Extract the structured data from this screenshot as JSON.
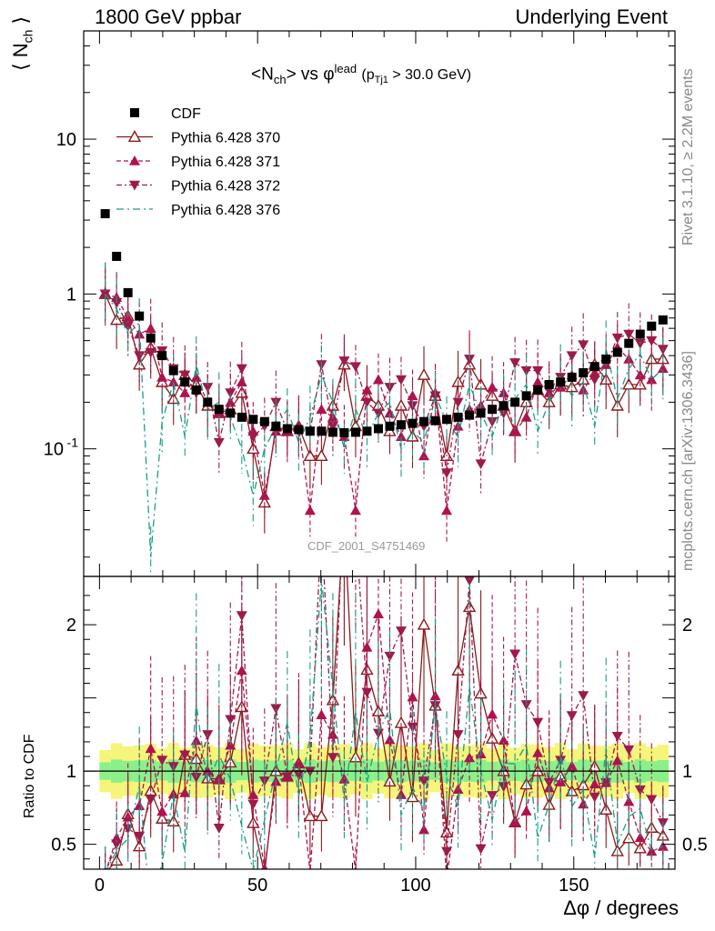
{
  "header": {
    "left": "1800 GeV ppbar",
    "right": "Underlying Event"
  },
  "side_texts": {
    "rivet": "Rivet 3.1.10, ≥ 2.2M events",
    "mcplots": "mcplots.cern.ch [arXiv:1306.3436]"
  },
  "watermark": "CDF_2001_S4751469",
  "chart_data": [
    {
      "type": "scatter",
      "title": "<N_ch> vs φ^lead (p_Tj1 > 30.0 GeV)",
      "ylabel": "⟨ N_ch ⟩",
      "yscale": "log",
      "xlim": [
        -5,
        182
      ],
      "ylim": [
        0.015,
        50
      ],
      "yticks": [
        0.1,
        1,
        10
      ],
      "ytick_labels": [
        "10^-1",
        "1",
        "10"
      ],
      "legend": "top-left",
      "x": [
        1.8,
        5.4,
        9,
        12.6,
        16.2,
        19.8,
        23.4,
        27,
        30.6,
        34.2,
        37.8,
        41.4,
        45,
        48.6,
        52.2,
        55.8,
        59.4,
        63,
        66.6,
        70.2,
        73.8,
        77.4,
        81,
        84.6,
        88.2,
        91.8,
        95.4,
        99,
        102.6,
        106.2,
        109.8,
        113.4,
        117,
        120.6,
        124.2,
        127.8,
        131.4,
        135,
        138.6,
        142.2,
        145.8,
        149.4,
        153,
        156.6,
        160.2,
        163.8,
        167.4,
        171,
        174.6,
        178.2
      ],
      "series": [
        {
          "name": "CDF",
          "color": "#000000",
          "marker": "square",
          "values": [
            3.3,
            1.75,
            1.02,
            0.72,
            0.52,
            0.4,
            0.32,
            0.27,
            0.24,
            0.2,
            0.18,
            0.17,
            0.16,
            0.155,
            0.15,
            0.14,
            0.135,
            0.133,
            0.13,
            0.13,
            0.128,
            0.127,
            0.128,
            0.13,
            0.135,
            0.14,
            0.143,
            0.146,
            0.15,
            0.152,
            0.155,
            0.16,
            0.165,
            0.17,
            0.18,
            0.19,
            0.2,
            0.22,
            0.24,
            0.26,
            0.27,
            0.29,
            0.31,
            0.34,
            0.38,
            0.42,
            0.48,
            0.55,
            0.62,
            0.68
          ]
        },
        {
          "name": "Pythia 6.428 370",
          "color": "#8B1A1A",
          "marker": "open-triangle-up",
          "line": "solid",
          "values": [
            1.0,
            0.68,
            0.72,
            0.35,
            0.45,
            0.27,
            0.21,
            0.3,
            0.26,
            0.19,
            0.17,
            0.18,
            0.23,
            0.1,
            0.045,
            0.14,
            0.13,
            0.14,
            0.09,
            0.09,
            0.19,
            0.35,
            0.14,
            0.22,
            0.19,
            0.13,
            0.19,
            0.12,
            0.3,
            0.22,
            0.09,
            0.27,
            0.35,
            0.26,
            0.22,
            0.19,
            0.13,
            0.2,
            0.24,
            0.2,
            0.26,
            0.25,
            0.28,
            0.35,
            0.28,
            0.19,
            0.26,
            0.26,
            0.38,
            0.38
          ]
        },
        {
          "name": "Pythia 6.428 371",
          "color": "#B0124F",
          "marker": "triangle-up",
          "line": "dashed",
          "values": [
            1.0,
            0.95,
            0.7,
            0.55,
            0.6,
            0.29,
            0.27,
            0.23,
            0.29,
            0.2,
            0.17,
            0.2,
            0.27,
            0.13,
            0.05,
            0.13,
            0.13,
            0.14,
            0.04,
            0.18,
            0.16,
            0.12,
            0.04,
            0.24,
            0.28,
            0.17,
            0.12,
            0.22,
            0.09,
            0.23,
            0.04,
            0.14,
            0.18,
            0.19,
            0.25,
            0.23,
            0.13,
            0.16,
            0.27,
            0.23,
            0.25,
            0.3,
            0.24,
            0.31,
            0.35,
            0.45,
            0.38,
            0.3,
            0.28,
            0.33
          ]
        },
        {
          "name": "Pythia 6.428 372",
          "color": "#9E1A4A",
          "marker": "triangle-down",
          "line": "dash-dot",
          "values": [
            1.0,
            0.88,
            0.62,
            0.4,
            0.42,
            0.43,
            0.33,
            0.3,
            0.23,
            0.25,
            0.11,
            0.23,
            0.33,
            0.12,
            0.14,
            0.2,
            0.13,
            0.13,
            0.13,
            0.35,
            0.14,
            0.37,
            0.34,
            0.2,
            0.17,
            0.25,
            0.28,
            0.19,
            0.14,
            0.22,
            0.07,
            0.2,
            0.38,
            0.08,
            0.15,
            0.17,
            0.36,
            0.32,
            0.32,
            0.24,
            0.29,
            0.4,
            0.47,
            0.28,
            0.35,
            0.52,
            0.55,
            0.48,
            0.5,
            0.44
          ]
        },
        {
          "name": "Pythia 6.428 376",
          "color": "#1A9E8A",
          "marker": "none",
          "line": "dash-dot-sparse",
          "values": [
            1.0,
            0.8,
            0.55,
            0.65,
            0.02,
            0.15,
            0.27,
            0.12,
            0.35,
            0.18,
            0.2,
            0.16,
            0.1,
            0.05,
            0.1,
            0.14,
            0.18,
            0.11,
            0.16,
            0.3,
            0.2,
            0.1,
            0.18,
            0.12,
            0.17,
            0.2,
            0.1,
            0.13,
            0.11,
            0.22,
            0.15,
            0.12,
            0.26,
            0.17,
            0.12,
            0.2,
            0.21,
            0.26,
            0.13,
            0.2,
            0.3,
            0.22,
            0.27,
            0.14,
            0.44,
            0.21,
            0.33,
            0.41,
            0.28,
            0.33
          ]
        }
      ],
      "band": {
        "color_inner": "#8af08a",
        "color_outer": "#f5f57a"
      }
    },
    {
      "type": "line",
      "ylabel": "Ratio to CDF",
      "xlabel": "Δφ / degrees",
      "xlim": [
        -5,
        182
      ],
      "ylim": [
        0.33,
        2.33
      ],
      "yticks": [
        0.5,
        1,
        2
      ],
      "ytick_labels": [
        "0.5",
        "1",
        "2"
      ],
      "xticks": [
        0,
        50,
        100,
        150
      ],
      "xtick_labels": [
        "0",
        "50",
        "100",
        "150"
      ],
      "note": "ratio series = MC / CDF"
    }
  ]
}
